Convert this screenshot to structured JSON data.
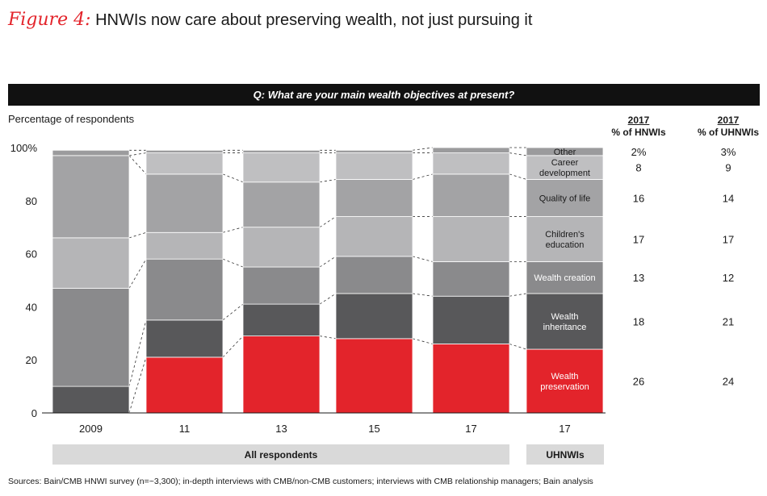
{
  "title": {
    "figure_label": "Figure 4:",
    "text": "HNWIs now care about preserving wealth, not just pursuing it"
  },
  "question": "Q: What are your main wealth objectives at present?",
  "table_headers": {
    "hnwi": {
      "year": "2017",
      "label": "% of HNWIs"
    },
    "uhnwi": {
      "year": "2017",
      "label": "% of UHNWIs"
    }
  },
  "group_labels": {
    "all": "All respondents",
    "uhnwi": "UHNWIs"
  },
  "sources": "Sources: Bain/CMB HNWI survey (n=~3,300); in-depth interviews with CMB/non-CMB customers; interviews with CMB relationship managers; Bain analysis",
  "colors": {
    "preservation": "#e3242b",
    "inheritance": "#58585a",
    "creation": "#8a8a8c",
    "education": "#b5b5b7",
    "quality": "#a3a3a5",
    "career": "#bfbfc1",
    "other": "#9b9b9d",
    "group_bar": "#d9d9d9"
  },
  "chart_data": {
    "type": "bar",
    "stacked": true,
    "ylabel": "Percentage of respondents",
    "ylim": [
      0,
      100
    ],
    "yticks": [
      "0",
      "20",
      "40",
      "60",
      "80",
      "100%"
    ],
    "categories": [
      "2009",
      "11",
      "13",
      "15",
      "17",
      "17"
    ],
    "series": [
      {
        "name": "Wealth preservation",
        "color_key": "preservation",
        "values": [
          0,
          21,
          29,
          28,
          26,
          24
        ]
      },
      {
        "name": "Wealth inheritance",
        "color_key": "inheritance",
        "values": [
          10,
          14,
          12,
          17,
          18,
          21
        ]
      },
      {
        "name": "Wealth creation",
        "color_key": "creation",
        "values": [
          37,
          23,
          14,
          14,
          13,
          12
        ]
      },
      {
        "name": "Children's education",
        "color_key": "education",
        "values": [
          19,
          10,
          15,
          15,
          17,
          17
        ]
      },
      {
        "name": "Quality of life",
        "color_key": "quality",
        "values": [
          31,
          22,
          17,
          14,
          16,
          14
        ]
      },
      {
        "name": "Career development",
        "color_key": "career",
        "values": [
          0,
          8,
          11,
          10,
          8,
          9
        ]
      },
      {
        "name": "Other",
        "color_key": "other",
        "values": [
          2,
          1,
          1,
          1,
          2,
          3
        ]
      }
    ],
    "segment_labels": [
      "Wealth\npreservation",
      "Wealth\ninheritance",
      "Wealth creation",
      "Children's\neducation",
      "Quality of life",
      "Career\ndevelopment",
      "Other"
    ],
    "table_values": {
      "hnwi": [
        "26",
        "18",
        "13",
        "17",
        "16",
        "8",
        "2%"
      ],
      "uhnwi": [
        "24",
        "21",
        "12",
        "17",
        "14",
        "9",
        "3%"
      ]
    }
  }
}
